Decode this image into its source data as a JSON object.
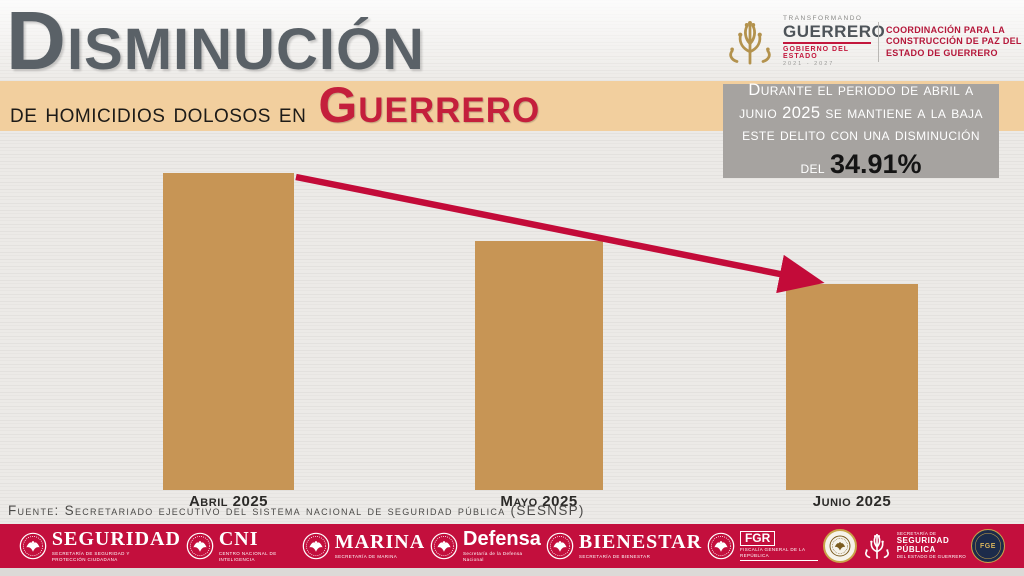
{
  "colors": {
    "accent_red": "#c30f3d",
    "title_gray": "#5a6167",
    "band_tan": "#f2cf9e",
    "bar_tan": "#c79555",
    "callout_gray": "#a6a3a0"
  },
  "header": {
    "title": "Disminución",
    "subtitle_prefix": "de homicidios dolosos en",
    "subtitle_highlight": "Guerrero",
    "gov_logo": {
      "tagline": "Transformando",
      "state": "Guerrero",
      "government": "Gobierno del Estado",
      "period": "2021 - 2027",
      "coordination_lines": [
        "Coordinación para la",
        "construcción de paz del",
        "Estado de Guerrero"
      ]
    }
  },
  "callout": {
    "text": "Durante el periodo de abril a junio 2025 se mantiene a la baja este delito con una disminución del",
    "stat": "34.91%"
  },
  "chart_data": {
    "type": "bar",
    "title": "Disminución de homicidios dolosos en Guerrero",
    "categories": [
      "Abril 2025",
      "Mayo 2025",
      "Junio 2025"
    ],
    "values": [
      100,
      78.5,
      65.1
    ],
    "unit": "índice relativo (Abril 2025 = 100; sin eje de valores visible)",
    "ylim": [
      0,
      100
    ],
    "grid": false,
    "value_labels_shown": false,
    "bar_color": "#c79555",
    "trend": {
      "direction": "down",
      "annotation": "Disminución del 34.91%",
      "arrow_color": "#c30b39"
    }
  },
  "source": "Fuente: Secretariado ejecutivo del sistema nacional de seguridad pública (SESNSP)",
  "footer": {
    "agencies": [
      {
        "name": "SEGURIDAD",
        "sub": "Secretaría de Seguridad y Protección Ciudadana"
      },
      {
        "name": "CNI",
        "sub": "Centro Nacional de Inteligencia"
      },
      {
        "name": "MARINA",
        "sub": "Secretaría de Marina"
      },
      {
        "name": "Defensa",
        "sub": "Secretaría de la Defensa Nacional"
      },
      {
        "name": "BIENESTAR",
        "sub": "Secretaría de Bienestar"
      },
      {
        "name": "FGR",
        "sub": "Fiscalía General de la República"
      }
    ],
    "ssp_guerrero": {
      "sup": "Secretaría de",
      "name1": "Seguridad",
      "name2": "Pública",
      "sub": "del Estado de Guerrero"
    },
    "fge": {
      "abbr": "FGE"
    }
  }
}
